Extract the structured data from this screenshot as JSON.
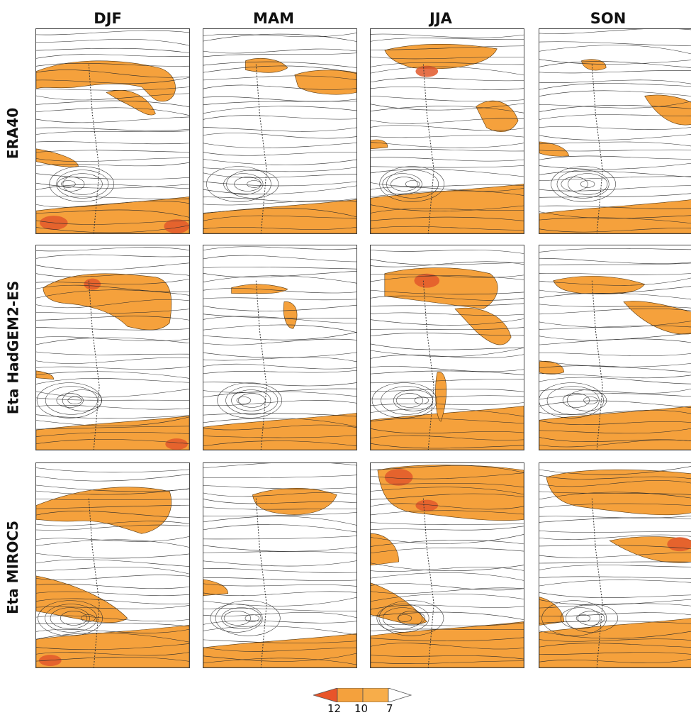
{
  "columns": [
    "DJF",
    "MAM",
    "JJA",
    "SON"
  ],
  "rows": [
    "ERA40",
    "Eta HadGEM2-ES",
    "Eta MIROC5"
  ],
  "colorbar": {
    "labels": [
      "12",
      "10",
      "7"
    ],
    "colors": [
      "#e8552a",
      "#f5a640",
      "#f5a640",
      "#ffffff"
    ]
  },
  "shading_colors": {
    "strong": "#e2582a",
    "moderate": "#f5a13c",
    "streamline": "#2b2b2b"
  }
}
